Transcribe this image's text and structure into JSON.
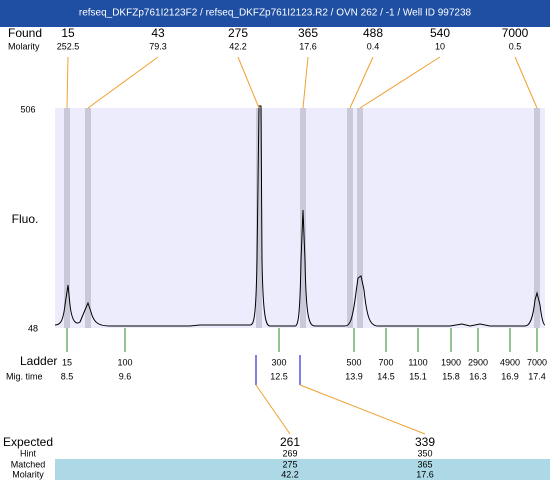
{
  "title": "refseq_DKFZp761I2123F2 / refseq_DKFZp761I2123.R2 / OVN 262 / -1 / Well ID 997238",
  "found": {
    "label": "Found",
    "molarity_label": "Molarity",
    "peaks": [
      {
        "size": 15,
        "molarity": 252.5
      },
      {
        "size": 43,
        "molarity": 79.3
      },
      {
        "size": 275,
        "molarity": 42.2
      },
      {
        "size": 365,
        "molarity": 17.6
      },
      {
        "size": 488,
        "molarity": 0.4
      },
      {
        "size": 540,
        "molarity": 10
      },
      {
        "size": 7000,
        "molarity": 0.5
      }
    ]
  },
  "axis": {
    "top": 506,
    "bottom": 48,
    "label": "Fluo."
  },
  "ladder": {
    "label": "Ladder",
    "time_label": "Mig. time",
    "items": [
      {
        "size": 15,
        "time": 8.5
      },
      {
        "size": 100,
        "time": 9.6
      },
      {
        "size": 300,
        "time": 12.5
      },
      {
        "size": 500,
        "time": 13.9
      },
      {
        "size": 700,
        "time": 14.5
      },
      {
        "size": 1100,
        "time": 15.1
      },
      {
        "size": 1900,
        "time": 15.8
      },
      {
        "size": 2900,
        "time": 16.3
      },
      {
        "size": 4900,
        "time": 16.9
      },
      {
        "size": 7000,
        "time": 17.4
      }
    ]
  },
  "expected": {
    "label": "Expected",
    "hint_label": "Hint",
    "matched_label": "Matched",
    "molarity_label": "Molarity",
    "items": [
      {
        "expected": 261,
        "hint": 269,
        "matched": 275,
        "molarity": 42.2
      },
      {
        "expected": 339,
        "hint": 350,
        "matched": 365,
        "molarity": 17.6
      }
    ]
  }
}
